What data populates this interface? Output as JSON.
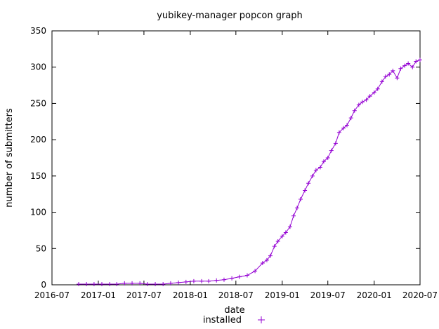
{
  "chart_data": {
    "type": "line",
    "title": "yubikey-manager popcon graph",
    "xlabel": "date",
    "ylabel": "number of submitters",
    "xlim": [
      "2016-07-01",
      "2020-07-01"
    ],
    "ylim": [
      0,
      350
    ],
    "x_ticks": [
      "2016-07",
      "2017-01",
      "2017-07",
      "2018-01",
      "2018-07",
      "2019-01",
      "2019-07",
      "2020-01",
      "2020-07"
    ],
    "y_ticks": [
      0,
      50,
      100,
      150,
      200,
      250,
      300,
      350
    ],
    "grid": false,
    "legend": "bottom-center",
    "series": [
      {
        "name": "installed",
        "color": "#9400d3",
        "x": [
          "2016-10-15",
          "2016-11-15",
          "2016-12-15",
          "2017-01-15",
          "2017-02-15",
          "2017-03-15",
          "2017-04-15",
          "2017-05-15",
          "2017-06-15",
          "2017-07-15",
          "2017-08-15",
          "2017-09-15",
          "2017-10-15",
          "2017-11-15",
          "2017-12-15",
          "2018-01-15",
          "2018-02-15",
          "2018-03-15",
          "2018-04-15",
          "2018-05-15",
          "2018-06-15",
          "2018-07-15",
          "2018-08-15",
          "2018-09-15",
          "2018-10-15",
          "2018-11-01",
          "2018-11-15",
          "2018-12-01",
          "2018-12-15",
          "2019-01-01",
          "2019-01-15",
          "2019-02-01",
          "2019-02-15",
          "2019-03-01",
          "2019-03-15",
          "2019-04-01",
          "2019-04-15",
          "2019-05-01",
          "2019-05-15",
          "2019-06-01",
          "2019-06-15",
          "2019-07-01",
          "2019-07-15",
          "2019-08-01",
          "2019-08-15",
          "2019-09-01",
          "2019-09-15",
          "2019-10-01",
          "2019-10-15",
          "2019-11-01",
          "2019-11-15",
          "2019-12-01",
          "2019-12-15",
          "2020-01-01",
          "2020-01-15",
          "2020-02-01",
          "2020-02-15",
          "2020-03-01",
          "2020-03-15",
          "2020-04-01",
          "2020-04-15",
          "2020-05-01",
          "2020-05-15",
          "2020-06-01",
          "2020-06-15",
          "2020-07-01"
        ],
        "values": [
          1,
          1,
          1,
          1,
          1,
          1,
          2,
          2,
          2,
          1,
          1,
          1,
          2,
          3,
          4,
          5,
          5,
          5,
          6,
          7,
          9,
          11,
          13,
          19,
          30,
          34,
          40,
          53,
          60,
          67,
          72,
          80,
          95,
          106,
          118,
          130,
          140,
          150,
          158,
          162,
          170,
          175,
          185,
          195,
          210,
          216,
          220,
          230,
          240,
          248,
          252,
          255,
          260,
          265,
          270,
          280,
          287,
          290,
          295,
          285,
          298,
          302,
          305,
          300,
          308,
          310
        ]
      }
    ]
  }
}
